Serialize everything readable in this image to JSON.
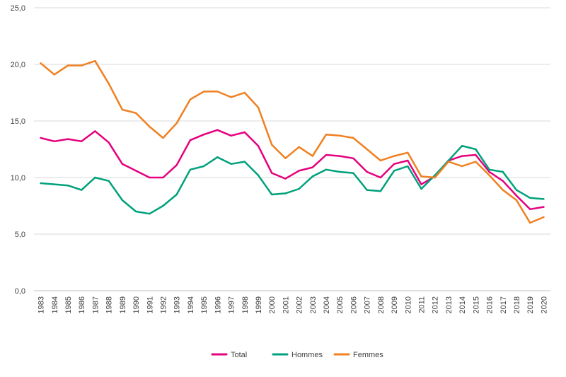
{
  "chart_data": {
    "type": "line",
    "title": "",
    "xlabel": "",
    "ylabel": "",
    "ylim": [
      0,
      25
    ],
    "y_ticks": [
      "0,0",
      "5,0",
      "10,0",
      "15,0",
      "20,0",
      "25,0"
    ],
    "y_tick_values": [
      0,
      5,
      10,
      15,
      20,
      25
    ],
    "grid": "horizontal",
    "legend_position": "bottom",
    "categories": [
      "1983",
      "1984",
      "1985",
      "1986",
      "1987",
      "1988",
      "1989",
      "1990",
      "1991",
      "1992",
      "1993",
      "1994",
      "1995",
      "1996",
      "1997",
      "1998",
      "1999",
      "2000",
      "2001",
      "2002",
      "2003",
      "2004",
      "2005",
      "2006",
      "2007",
      "2008",
      "2009",
      "2010",
      "2011",
      "2012",
      "2013",
      "2014",
      "2015",
      "2016",
      "2017",
      "2018",
      "2019",
      "2020"
    ],
    "series": [
      {
        "name": "Total",
        "color": "#e5007e",
        "values": [
          13.5,
          13.2,
          13.4,
          13.2,
          14.1,
          13.1,
          11.2,
          10.6,
          10.0,
          10.0,
          11.1,
          13.3,
          13.8,
          14.2,
          13.7,
          14.0,
          12.8,
          10.4,
          9.9,
          10.6,
          10.9,
          12.0,
          11.9,
          11.7,
          10.5,
          10.0,
          11.2,
          11.5,
          9.4,
          10.1,
          11.5,
          11.9,
          12.0,
          10.5,
          9.7,
          8.4,
          7.2,
          7.4
        ]
      },
      {
        "name": "Hommes",
        "color": "#00a17c",
        "values": [
          9.5,
          9.4,
          9.3,
          8.9,
          10.0,
          9.7,
          8.0,
          7.0,
          6.8,
          7.5,
          8.5,
          10.7,
          11.0,
          11.8,
          11.2,
          11.4,
          10.2,
          8.5,
          8.6,
          9.0,
          10.1,
          10.7,
          10.5,
          10.4,
          8.9,
          8.8,
          10.6,
          11.0,
          9.0,
          10.2,
          11.5,
          12.8,
          12.5,
          10.7,
          10.5,
          8.9,
          8.2,
          8.1
        ]
      },
      {
        "name": "Femmes",
        "color": "#f08020",
        "values": [
          20.1,
          19.1,
          19.9,
          19.9,
          20.3,
          18.3,
          16.0,
          15.7,
          14.5,
          13.5,
          14.8,
          16.9,
          17.6,
          17.6,
          17.1,
          17.5,
          16.2,
          12.9,
          11.7,
          12.7,
          11.9,
          13.8,
          13.7,
          13.5,
          12.5,
          11.5,
          11.9,
          12.2,
          10.1,
          10.0,
          11.4,
          11.0,
          11.4,
          10.2,
          8.9,
          8.0,
          6.0,
          6.5
        ]
      }
    ]
  }
}
